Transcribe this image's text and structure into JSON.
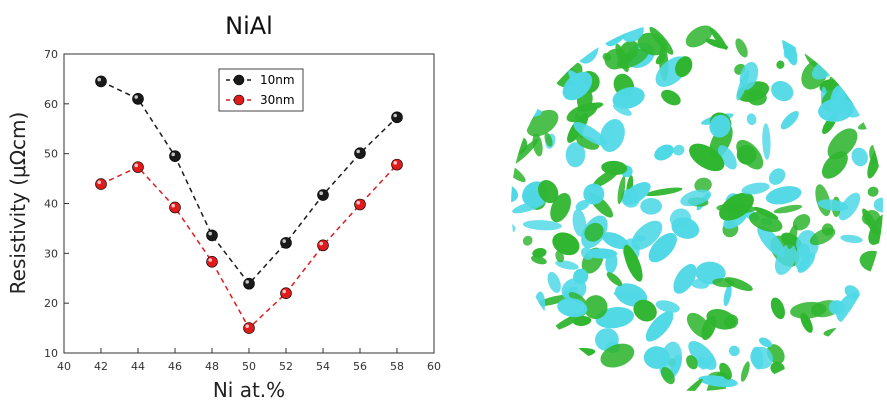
{
  "chart_data": {
    "type": "scatter",
    "title": "NiAl",
    "xlabel": "Ni at.%",
    "ylabel": "Resistivity (μΩcm)",
    "xlim": [
      40,
      60
    ],
    "ylim": [
      10,
      70
    ],
    "xticks": [
      40,
      42,
      44,
      46,
      48,
      50,
      52,
      54,
      56,
      58,
      60
    ],
    "yticks": [
      10,
      20,
      30,
      40,
      50,
      60,
      70
    ],
    "grid": false,
    "legend_position": "top-center",
    "x": [
      42,
      44,
      46,
      48,
      50,
      52,
      54,
      56,
      58
    ],
    "series": [
      {
        "name": "10nm",
        "color": "#1a1a1a",
        "line_style": "dashed",
        "values": [
          64.5,
          61.0,
          49.5,
          33.6,
          23.9,
          32.1,
          41.7,
          50.1,
          57.3
        ]
      },
      {
        "name": "30nm",
        "color": "#e01b1b",
        "line_style": "dashed",
        "values": [
          43.9,
          47.3,
          39.2,
          28.3,
          15.0,
          22.0,
          31.6,
          39.8,
          47.8
        ]
      }
    ]
  },
  "figure": {
    "micrograph_colors": {
      "phase_a": "#2fb52f",
      "phase_b": "#4fd8e6"
    }
  }
}
